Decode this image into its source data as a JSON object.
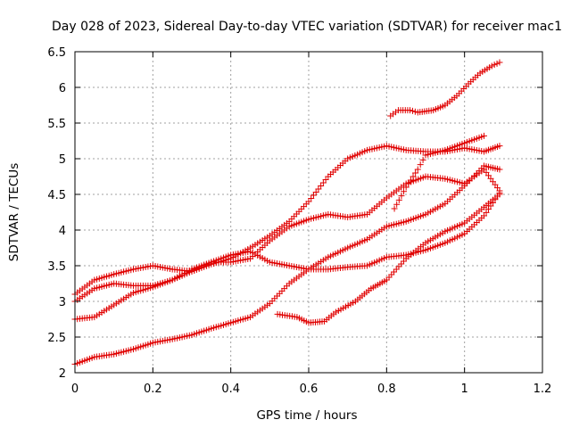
{
  "chart_data": {
    "type": "scatter",
    "title": "Day 028 of 2023, Sidereal Day-to-day VTEC variation (SDTVAR) for receiver mac1",
    "xlabel": "GPS time / hours",
    "ylabel": "SDTVAR / TECUs",
    "xlim": [
      0,
      1.2
    ],
    "ylim": [
      2,
      6.5
    ],
    "xticks": [
      "0",
      "0.2",
      "0.4",
      "0.6",
      "0.8",
      "1",
      "1.2"
    ],
    "yticks": [
      "2",
      "2.5",
      "3",
      "3.5",
      "4",
      "4.5",
      "5",
      "5.5",
      "6",
      "6.5"
    ],
    "grid": true,
    "marker": "+",
    "series_color": "#e00000",
    "series": [
      {
        "name": "s1",
        "points": [
          [
            0,
            2.12
          ],
          [
            0.05,
            2.22
          ],
          [
            0.1,
            2.26
          ],
          [
            0.15,
            2.33
          ],
          [
            0.2,
            2.42
          ],
          [
            0.25,
            2.47
          ],
          [
            0.3,
            2.53
          ],
          [
            0.35,
            2.62
          ],
          [
            0.4,
            2.7
          ],
          [
            0.45,
            2.78
          ],
          [
            0.5,
            2.97
          ],
          [
            0.55,
            3.25
          ],
          [
            0.6,
            3.45
          ],
          [
            0.65,
            3.62
          ],
          [
            0.7,
            3.75
          ],
          [
            0.75,
            3.87
          ],
          [
            0.8,
            4.05
          ],
          [
            0.85,
            4.12
          ],
          [
            0.9,
            4.22
          ],
          [
            0.95,
            4.37
          ],
          [
            1.0,
            4.62
          ],
          [
            1.05,
            4.9
          ],
          [
            1.09,
            4.85
          ]
        ]
      },
      {
        "name": "s2",
        "points": [
          [
            0,
            2.75
          ],
          [
            0.05,
            2.78
          ],
          [
            0.1,
            2.95
          ],
          [
            0.15,
            3.12
          ],
          [
            0.2,
            3.2
          ],
          [
            0.25,
            3.3
          ],
          [
            0.3,
            3.45
          ],
          [
            0.35,
            3.55
          ],
          [
            0.4,
            3.55
          ],
          [
            0.45,
            3.6
          ],
          [
            0.5,
            3.85
          ],
          [
            0.55,
            4.05
          ],
          [
            0.6,
            4.15
          ],
          [
            0.65,
            4.22
          ],
          [
            0.7,
            4.18
          ],
          [
            0.75,
            4.22
          ],
          [
            0.8,
            4.45
          ],
          [
            0.85,
            4.65
          ],
          [
            0.9,
            4.75
          ],
          [
            0.95,
            4.72
          ],
          [
            1.0,
            4.65
          ],
          [
            1.05,
            4.85
          ],
          [
            1.09,
            4.55
          ]
        ]
      },
      {
        "name": "s3",
        "points": [
          [
            0,
            3.0
          ],
          [
            0.05,
            3.18
          ],
          [
            0.1,
            3.25
          ],
          [
            0.15,
            3.22
          ],
          [
            0.2,
            3.22
          ],
          [
            0.25,
            3.3
          ],
          [
            0.3,
            3.42
          ],
          [
            0.35,
            3.52
          ],
          [
            0.4,
            3.6
          ],
          [
            0.45,
            3.75
          ],
          [
            0.5,
            3.92
          ],
          [
            0.55,
            4.12
          ],
          [
            0.6,
            4.4
          ],
          [
            0.65,
            4.75
          ],
          [
            0.7,
            5.0
          ],
          [
            0.75,
            5.12
          ],
          [
            0.8,
            5.18
          ],
          [
            0.85,
            5.12
          ],
          [
            0.9,
            5.1
          ],
          [
            0.95,
            5.1
          ],
          [
            1.0,
            5.15
          ],
          [
            1.05,
            5.1
          ],
          [
            1.09,
            5.18
          ]
        ]
      },
      {
        "name": "s4",
        "points": [
          [
            0,
            3.1
          ],
          [
            0.05,
            3.3
          ],
          [
            0.1,
            3.38
          ],
          [
            0.15,
            3.45
          ],
          [
            0.2,
            3.5
          ],
          [
            0.25,
            3.45
          ],
          [
            0.3,
            3.42
          ],
          [
            0.35,
            3.55
          ],
          [
            0.4,
            3.65
          ],
          [
            0.45,
            3.7
          ],
          [
            0.5,
            3.55
          ],
          [
            0.55,
            3.5
          ],
          [
            0.6,
            3.45
          ],
          [
            0.65,
            3.45
          ],
          [
            0.7,
            3.48
          ],
          [
            0.75,
            3.5
          ],
          [
            0.8,
            3.62
          ],
          [
            0.85,
            3.65
          ],
          [
            0.9,
            3.72
          ],
          [
            0.95,
            3.82
          ],
          [
            1.0,
            3.95
          ],
          [
            1.05,
            4.2
          ],
          [
            1.09,
            4.52
          ]
        ]
      },
      {
        "name": "s5",
        "points": [
          [
            0.52,
            2.82
          ],
          [
            0.57,
            2.78
          ],
          [
            0.6,
            2.7
          ],
          [
            0.64,
            2.72
          ],
          [
            0.67,
            2.85
          ],
          [
            0.72,
            3.0
          ],
          [
            0.76,
            3.18
          ],
          [
            0.8,
            3.3
          ],
          [
            0.85,
            3.6
          ],
          [
            0.9,
            3.82
          ],
          [
            0.95,
            3.98
          ],
          [
            1.0,
            4.1
          ],
          [
            1.05,
            4.32
          ],
          [
            1.09,
            4.5
          ]
        ]
      },
      {
        "name": "s6",
        "points": [
          [
            0.82,
            4.3
          ],
          [
            0.85,
            4.6
          ],
          [
            0.88,
            4.85
          ],
          [
            0.9,
            5.05
          ],
          [
            0.95,
            5.12
          ],
          [
            1.0,
            5.22
          ],
          [
            1.05,
            5.32
          ]
        ]
      },
      {
        "name": "s7",
        "points": [
          [
            0.81,
            5.6
          ],
          [
            0.83,
            5.68
          ],
          [
            0.86,
            5.68
          ],
          [
            0.88,
            5.65
          ],
          [
            0.92,
            5.68
          ],
          [
            0.95,
            5.75
          ],
          [
            0.98,
            5.88
          ],
          [
            1.01,
            6.05
          ],
          [
            1.04,
            6.2
          ],
          [
            1.07,
            6.3
          ],
          [
            1.09,
            6.35
          ]
        ]
      }
    ]
  }
}
